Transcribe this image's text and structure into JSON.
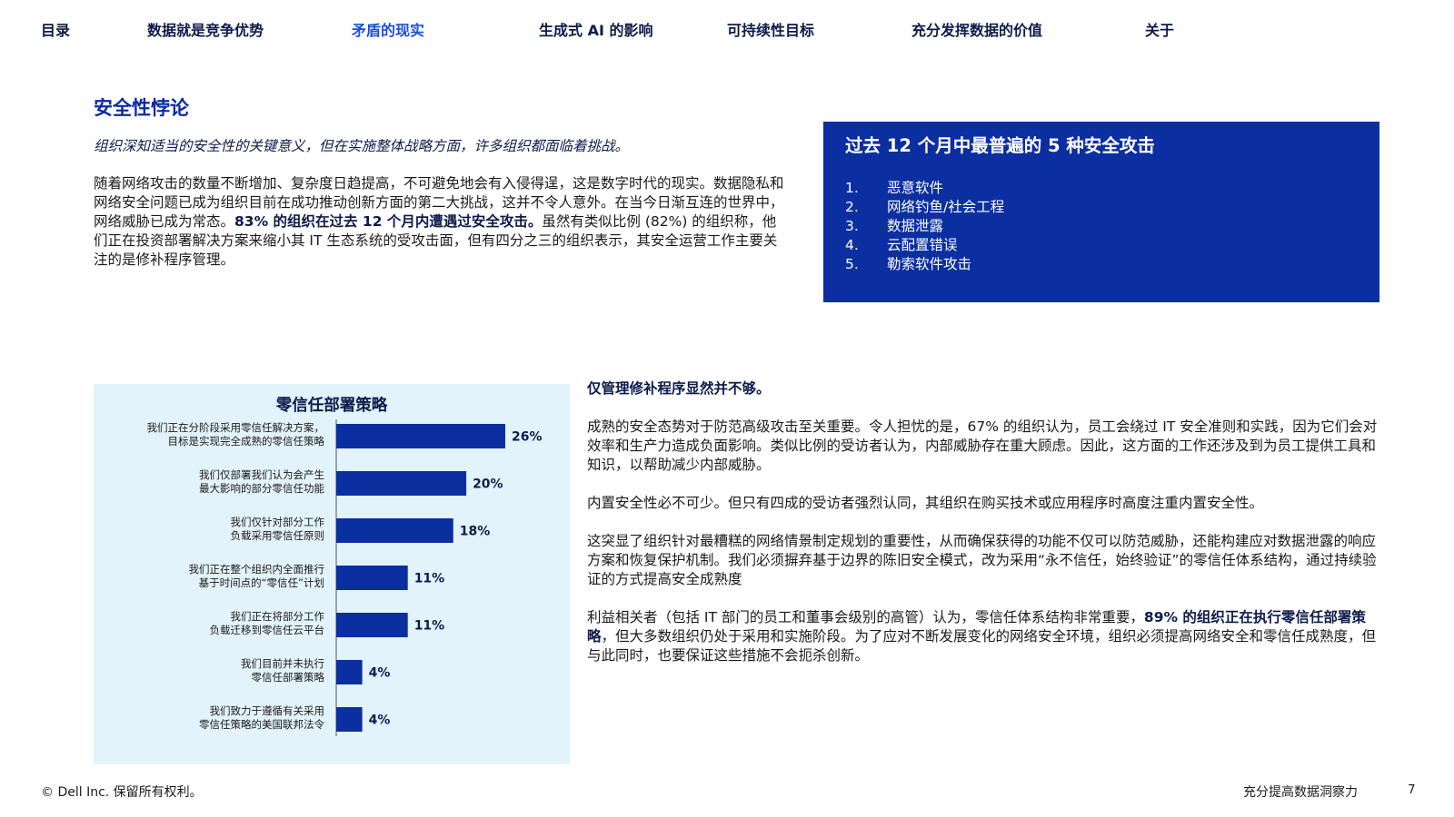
{
  "nav": {
    "items": [
      {
        "label": "目录",
        "active": false
      },
      {
        "label": "数据就是竞争优势",
        "active": false
      },
      {
        "label": "矛盾的现实",
        "active": true
      },
      {
        "label": "生成式 AI 的影响",
        "active": false
      },
      {
        "label": "可持续性目标",
        "active": false
      },
      {
        "label": "充分发挥数据的价值",
        "active": false
      },
      {
        "label": "关于",
        "active": false
      }
    ]
  },
  "section": {
    "title": "安全性悖论",
    "subtitle": "组织深知适当的安全性的关键意义，但在实施整体战略方面，许多组织都面临着挑战。",
    "intro_1": "随着网络攻击的数量不断增加、复杂度日趋提高，不可避免地会有入侵得逞，这是数字时代的现实。数据隐私和网络安全问题已成为组织目前在成功推动创新方面的第二大挑战，这并不令人意外。在当今日渐互连的世界中，网络威胁已成为常态。",
    "intro_bold": "83% 的组织在过去 12 个月内遭遇过安全攻击。",
    "intro_2": "虽然有类似比例 (82%) 的组织称，他们正在投资部署解决方案来缩小其 IT 生态系统的受攻击面，但有四分之三的组织表示，其安全运营工作主要关注的是修补程序管理。"
  },
  "attacks": {
    "title": "过去 12 个月中最普遍的 5 种安全攻击",
    "items": [
      {
        "num": "1.",
        "label": "恶意软件"
      },
      {
        "num": "2.",
        "label": "网络钓鱼/社会工程"
      },
      {
        "num": "3.",
        "label": "数据泄露"
      },
      {
        "num": "4.",
        "label": "云配置错误"
      },
      {
        "num": "5.",
        "label": "勒索软件攻击"
      }
    ]
  },
  "chart_data": {
    "type": "bar",
    "orientation": "horizontal",
    "title": "零信任部署策略",
    "categories": [
      [
        "我们正在分阶段采用零信任解决方案，",
        "目标是实现完全成熟的零信任策略"
      ],
      [
        "我们仅部署我们认为会产生",
        "最大影响的部分零信任功能"
      ],
      [
        "我们仅针对部分工作",
        "负载采用零信任原则"
      ],
      [
        "我们正在整个组织内全面推行",
        "基于时间点的“零信任”计划"
      ],
      [
        "我们正在将部分工作",
        "负载迁移到零信任云平台"
      ],
      [
        "我们目前并未执行",
        "零信任部署策略"
      ],
      [
        "我们致力于遵循有关采用",
        "零信任策略的美国联邦法令"
      ]
    ],
    "values": [
      26,
      20,
      18,
      11,
      11,
      4,
      4
    ],
    "value_labels": [
      "26%",
      "20%",
      "18%",
      "11%",
      "11%",
      "4%",
      "4%"
    ],
    "unit": "%",
    "bar_color": "#0b2fa0",
    "xlim": [
      0,
      26
    ],
    "grid": false,
    "legend": "none"
  },
  "right": {
    "lead": "仅管理修补程序显然并不够。",
    "p1": "成熟的安全态势对于防范高级攻击至关重要。令人担忧的是，67% 的组织认为，员工会绕过 IT 安全准则和实践，因为它们会对效率和生产力造成负面影响。类似比例的受访者认为，内部威胁存在重大顾虑。因此，这方面的工作还涉及到为员工提供工具和知识，以帮助减少内部威胁。",
    "p2": "内置安全性必不可少。但只有四成的受访者强烈认同，其组织在购买技术或应用程序时高度注重内置安全性。",
    "p3": "这突显了组织针对最糟糕的网络情景制定规划的重要性，从而确保获得的功能不仅可以防范威胁，还能构建应对数据泄露的响应方案和恢复保护机制。我们必须摒弃基于边界的陈旧安全模式，改为采用“永不信任，始终验证”的零信任体系结构，通过持续验证的方式提高安全成熟度",
    "p4_pre": "利益相关者（包括 IT 部门的员工和董事会级别的高管）认为，零信任体系结构非常重要，",
    "p4_bold": "89% 的组织正在执行零信任部署策略",
    "p4_post": "，但大多数组织仍处于采用和实施阶段。为了应对不断发展变化的网络安全环境，组织必须提高网络安全和零信任成熟度，但与此同时，也要保证这些措施不会扼杀创新。"
  },
  "footer": {
    "copyright": "© Dell Inc. 保留所有权利。",
    "doc_title": "充分提高数据洞察力",
    "page": "7"
  },
  "colors": {
    "accent": "#0b2fa0",
    "nav_active": "#1a4fd8",
    "panel_bg": "#e3f3fc"
  }
}
